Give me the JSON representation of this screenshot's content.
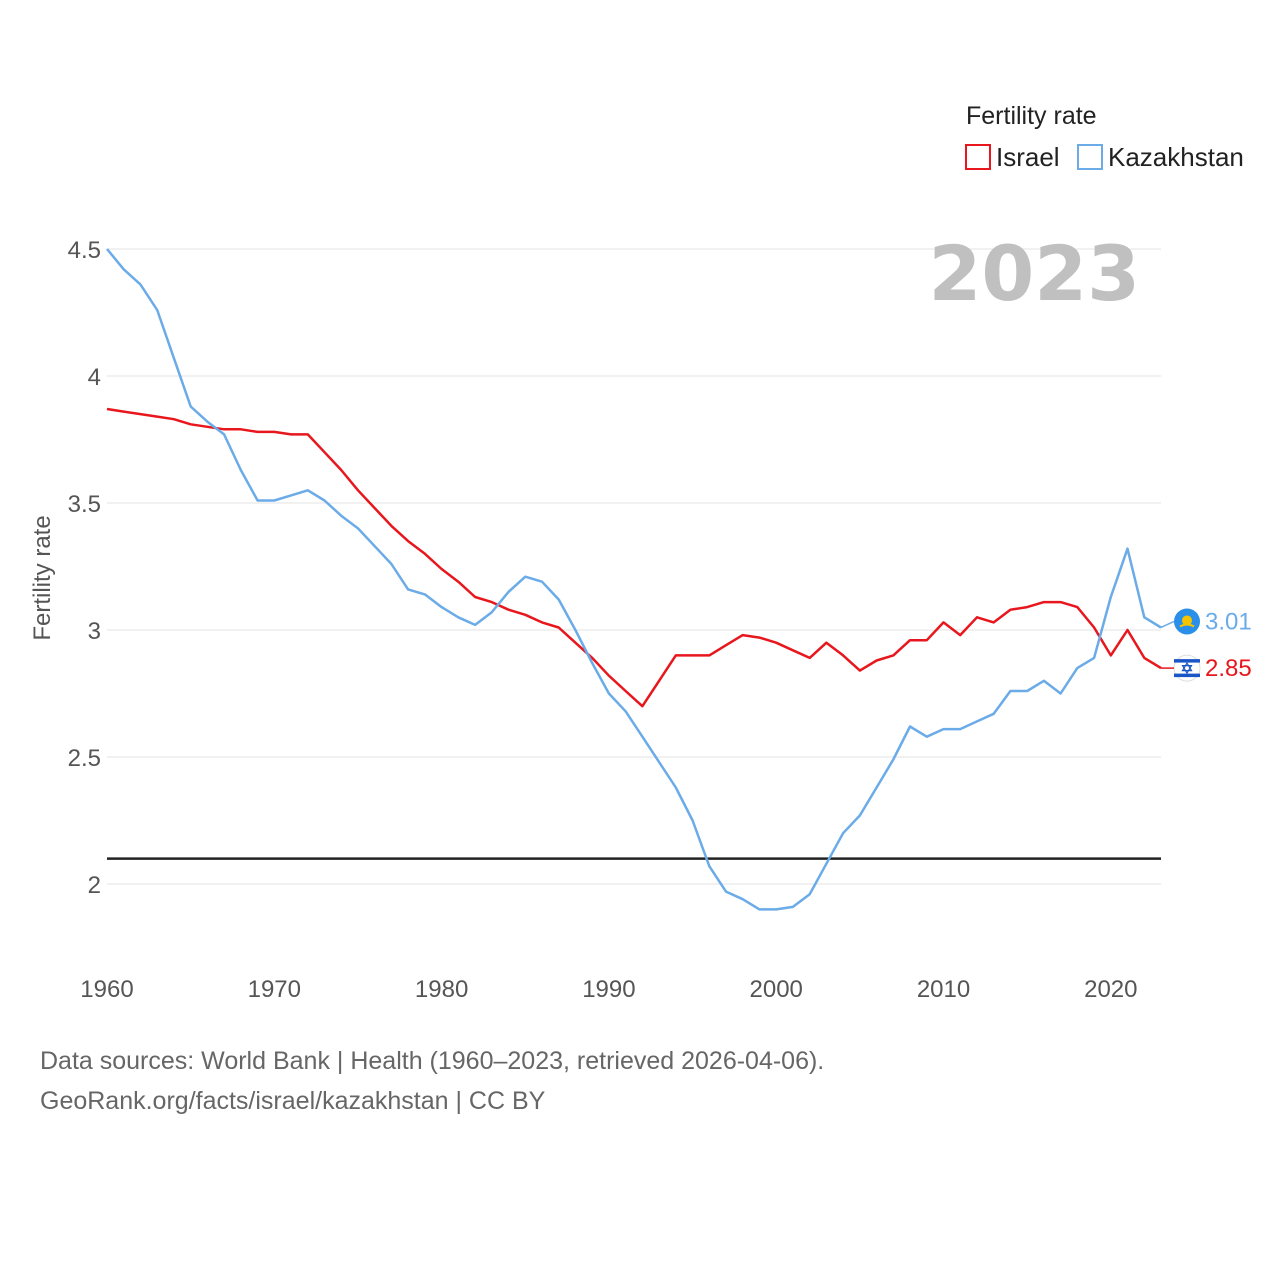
{
  "chart_data": {
    "type": "line",
    "title": "2023",
    "xlabel": "",
    "ylabel": "Fertility rate",
    "xlim": [
      1960,
      2023
    ],
    "ylim": [
      1.8,
      4.6
    ],
    "x_ticks": [
      "1960",
      "1970",
      "1980",
      "1990",
      "2000",
      "2010",
      "2020"
    ],
    "y_ticks": [
      "2",
      "2.5",
      "3",
      "3.5",
      "4",
      "4.5"
    ],
    "legend_title": "Fertility rate",
    "reference_line": 2.1,
    "series": [
      {
        "name": "Israel",
        "color": "#e8161d",
        "end_label": "2.85",
        "flag": "israel-flag-icon",
        "x": [
          1960,
          1961,
          1962,
          1963,
          1964,
          1965,
          1966,
          1967,
          1968,
          1969,
          1970,
          1971,
          1972,
          1973,
          1974,
          1975,
          1976,
          1977,
          1978,
          1979,
          1980,
          1981,
          1982,
          1983,
          1984,
          1985,
          1986,
          1987,
          1988,
          1989,
          1990,
          1991,
          1992,
          1993,
          1994,
          1995,
          1996,
          1997,
          1998,
          1999,
          2000,
          2001,
          2002,
          2003,
          2004,
          2005,
          2006,
          2007,
          2008,
          2009,
          2010,
          2011,
          2012,
          2013,
          2014,
          2015,
          2016,
          2017,
          2018,
          2019,
          2020,
          2021,
          2022,
          2023
        ],
        "values": [
          3.87,
          3.86,
          3.85,
          3.84,
          3.83,
          3.81,
          3.8,
          3.79,
          3.79,
          3.78,
          3.78,
          3.77,
          3.77,
          3.7,
          3.63,
          3.55,
          3.48,
          3.41,
          3.35,
          3.3,
          3.24,
          3.19,
          3.13,
          3.11,
          3.08,
          3.06,
          3.03,
          3.01,
          2.95,
          2.89,
          2.82,
          2.76,
          2.7,
          2.8,
          2.9,
          2.9,
          2.9,
          2.94,
          2.98,
          2.97,
          2.95,
          2.92,
          2.89,
          2.95,
          2.9,
          2.84,
          2.88,
          2.9,
          2.96,
          2.96,
          3.03,
          2.98,
          3.05,
          3.03,
          3.08,
          3.09,
          3.11,
          3.11,
          3.09,
          3.01,
          2.9,
          3.0,
          2.89,
          2.85
        ]
      },
      {
        "name": "Kazakhstan",
        "color": "#6aabe8",
        "end_label": "3.01",
        "flag": "kazakhstan-flag-icon",
        "x": [
          1960,
          1961,
          1962,
          1963,
          1964,
          1965,
          1966,
          1967,
          1968,
          1969,
          1970,
          1971,
          1972,
          1973,
          1974,
          1975,
          1976,
          1977,
          1978,
          1979,
          1980,
          1981,
          1982,
          1983,
          1984,
          1985,
          1986,
          1987,
          1988,
          1989,
          1990,
          1991,
          1992,
          1993,
          1994,
          1995,
          1996,
          1997,
          1998,
          1999,
          2000,
          2001,
          2002,
          2003,
          2004,
          2005,
          2006,
          2007,
          2008,
          2009,
          2010,
          2011,
          2012,
          2013,
          2014,
          2015,
          2016,
          2017,
          2018,
          2019,
          2020,
          2021,
          2022,
          2023
        ],
        "values": [
          4.5,
          4.42,
          4.36,
          4.26,
          4.07,
          3.88,
          3.82,
          3.77,
          3.63,
          3.51,
          3.51,
          3.53,
          3.55,
          3.51,
          3.45,
          3.4,
          3.33,
          3.26,
          3.16,
          3.14,
          3.09,
          3.05,
          3.02,
          3.07,
          3.15,
          3.21,
          3.19,
          3.12,
          3.0,
          2.87,
          2.75,
          2.68,
          2.58,
          2.48,
          2.38,
          2.25,
          2.07,
          1.97,
          1.94,
          1.9,
          1.9,
          1.91,
          1.96,
          2.08,
          2.2,
          2.27,
          2.38,
          2.49,
          2.62,
          2.58,
          2.61,
          2.61,
          2.64,
          2.67,
          2.76,
          2.76,
          2.8,
          2.75,
          2.85,
          2.89,
          3.13,
          3.32,
          3.05,
          3.01
        ]
      }
    ]
  },
  "footer": {
    "line1": "Data sources: World Bank | Health (1960–2023, retrieved 2026-04-06).",
    "line2": "GeoRank.org/facts/israel/kazakhstan | CC BY"
  }
}
